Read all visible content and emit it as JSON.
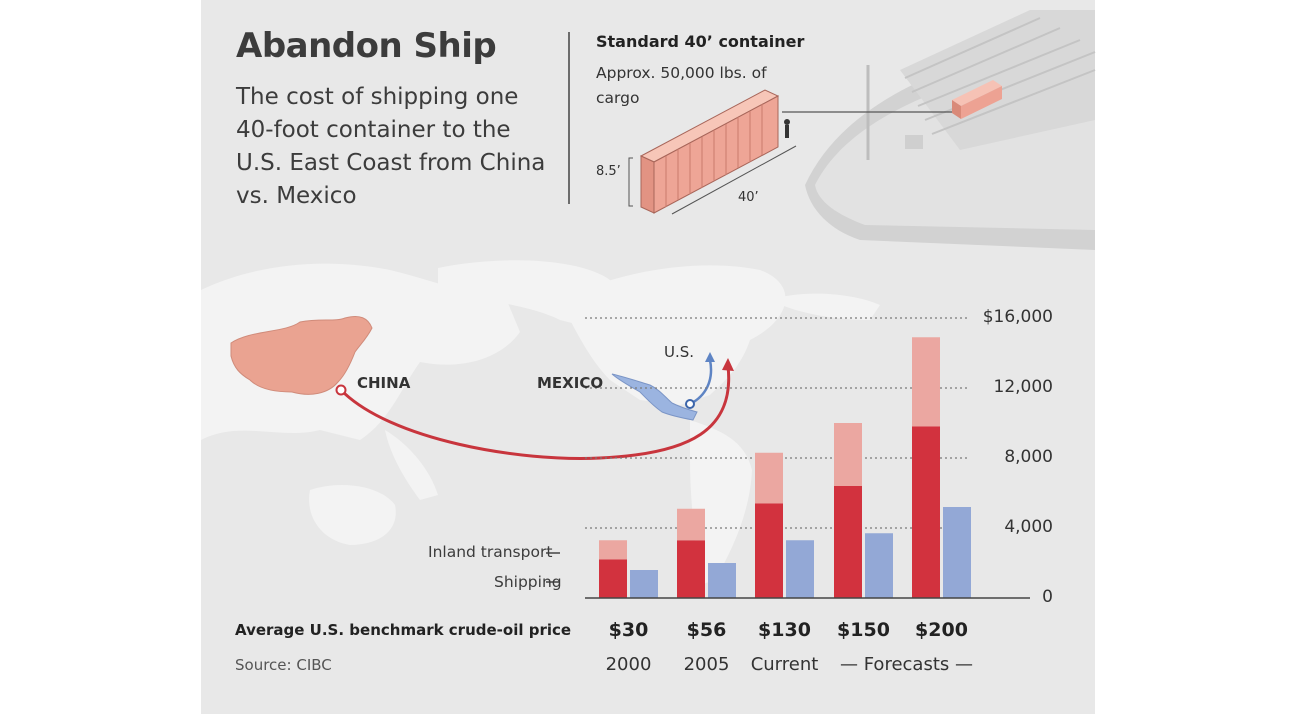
{
  "header": {
    "title": "Abandon Ship",
    "subtitle": "The cost of shipping one 40-foot container to the U.S. East Coast from China vs. Mexico"
  },
  "container_note": {
    "title": "Standard 40’ container",
    "subtitle": "Approx. 50,000 lbs. of cargo",
    "height_label": "8.5’",
    "length_label": "40’"
  },
  "map": {
    "china_label": "CHINA",
    "mexico_label": "MEXICO",
    "us_label": "U.S."
  },
  "legend": {
    "inland": "Inland transport",
    "shipping": "Shipping"
  },
  "footer": {
    "oil_label": "Average U.S. benchmark crude-oil price",
    "source": "Source: CIBC",
    "forecasts_label": "— Forecasts —"
  },
  "colors": {
    "china_shipping": "#d2323e",
    "china_inland": "#eba7a1",
    "mexico": "#93a8d6",
    "china_map": "#eaa391",
    "mexico_map": "#9bb4e0",
    "route": "#c8353d",
    "background": "#e8e8e8"
  },
  "chart_data": {
    "type": "bar",
    "stacked_series_for": "China",
    "categories": [
      "2000",
      "2005",
      "Current",
      "Forecasts",
      "Forecasts"
    ],
    "oil_prices": [
      "$30",
      "$56",
      "$130",
      "$150",
      "$200"
    ],
    "category_labels": [
      "2000",
      "2005",
      "Current"
    ],
    "series": [
      {
        "name": "Shipping",
        "group": "China",
        "values": [
          2200,
          3300,
          5400,
          6400,
          9800
        ]
      },
      {
        "name": "Inland transport",
        "group": "China",
        "values": [
          1100,
          1800,
          2900,
          3600,
          5100
        ]
      },
      {
        "group": "Mexico",
        "values": [
          1600,
          2000,
          3300,
          3700,
          5200
        ]
      }
    ],
    "yticks": [
      "$16,000",
      "12,000",
      "8,000",
      "4,000",
      "0"
    ],
    "ytick_values": [
      16000,
      12000,
      8000,
      4000,
      0
    ],
    "ylim": [
      0,
      16000
    ]
  }
}
